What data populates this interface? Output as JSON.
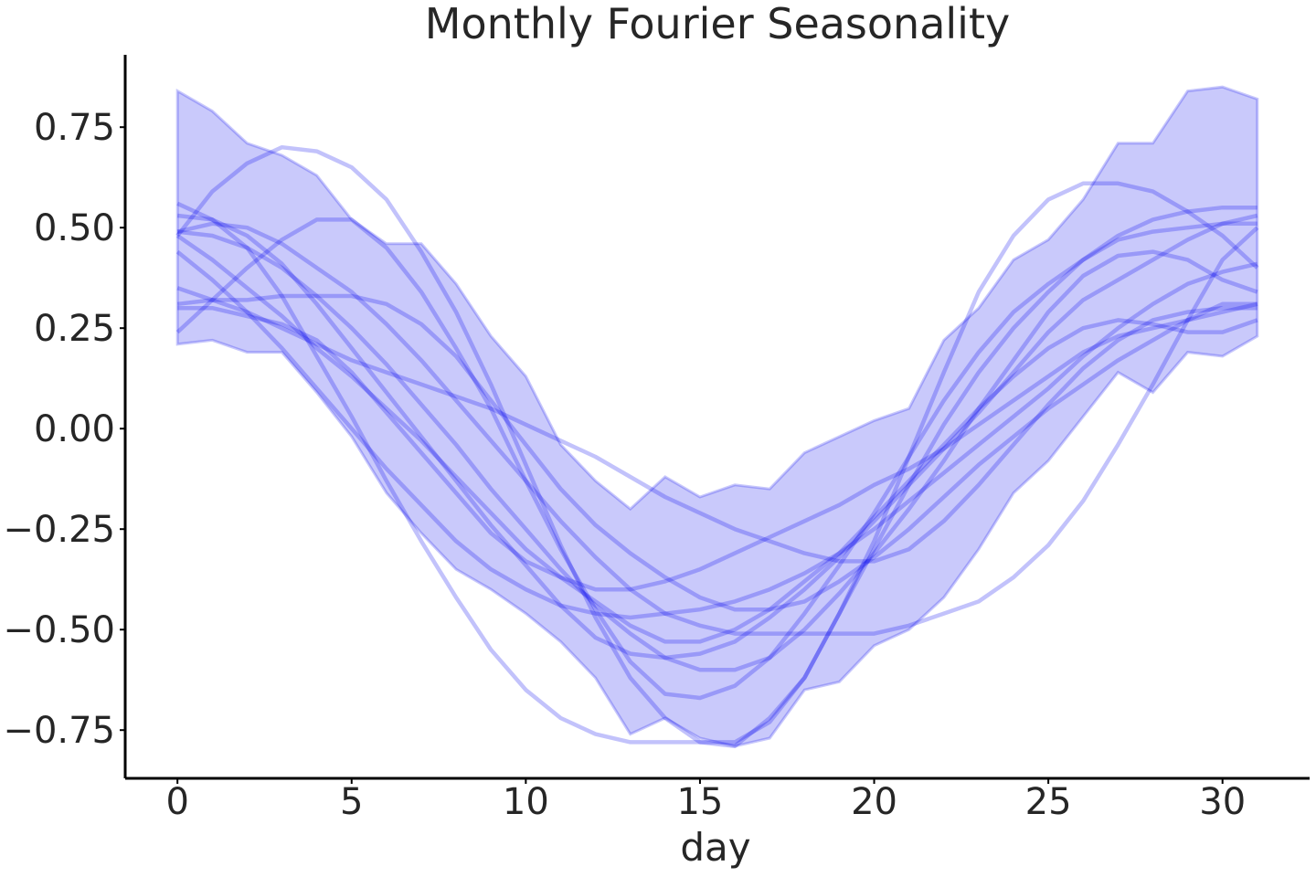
{
  "chart_data": {
    "type": "line",
    "title": "Monthly Fourier Seasonality",
    "xlabel": "day",
    "ylabel": "",
    "xlim": [
      -1.5,
      32.5
    ],
    "ylim": [
      -0.87,
      0.93
    ],
    "xticks": [
      0,
      5,
      10,
      15,
      20,
      25,
      30
    ],
    "xtick_labels": [
      "0",
      "5",
      "10",
      "15",
      "20",
      "25",
      "30"
    ],
    "yticks": [
      0.75,
      0.5,
      0.25,
      0.0,
      -0.25,
      -0.5,
      -0.75
    ],
    "ytick_labels": [
      "0.75",
      "0.50",
      "0.25",
      "0.00",
      "−0.25",
      "−0.50",
      "−0.75"
    ],
    "grid": false,
    "colors": {
      "band": "#0000ee",
      "line": "#0000ee",
      "text": "#262626"
    },
    "band": {
      "x": [
        0,
        1,
        2,
        3,
        4,
        5,
        6,
        7,
        8,
        9,
        10,
        11,
        12,
        13,
        14,
        15,
        16,
        17,
        18,
        19,
        20,
        21,
        22,
        23,
        24,
        25,
        26,
        27,
        28,
        29,
        30,
        31
      ],
      "upper": [
        0.84,
        0.79,
        0.71,
        0.68,
        0.63,
        0.52,
        0.46,
        0.46,
        0.36,
        0.23,
        0.13,
        -0.04,
        -0.13,
        -0.2,
        -0.12,
        -0.17,
        -0.14,
        -0.15,
        -0.06,
        -0.02,
        0.02,
        0.05,
        0.22,
        0.3,
        0.42,
        0.47,
        0.57,
        0.71,
        0.71,
        0.84,
        0.85,
        0.82
      ],
      "lower": [
        0.21,
        0.22,
        0.19,
        0.19,
        0.09,
        -0.02,
        -0.16,
        -0.26,
        -0.35,
        -0.4,
        -0.46,
        -0.53,
        -0.62,
        -0.76,
        -0.72,
        -0.77,
        -0.79,
        -0.77,
        -0.65,
        -0.63,
        -0.54,
        -0.5,
        -0.42,
        -0.3,
        -0.16,
        -0.08,
        0.03,
        0.14,
        0.09,
        0.19,
        0.18,
        0.23
      ]
    },
    "x": [
      0,
      1,
      2,
      3,
      4,
      5,
      6,
      7,
      8,
      9,
      10,
      11,
      12,
      13,
      14,
      15,
      16,
      17,
      18,
      19,
      20,
      21,
      22,
      23,
      24,
      25,
      26,
      27,
      28,
      29,
      30,
      31
    ],
    "series": [
      {
        "values": [
          0.48,
          0.59,
          0.66,
          0.7,
          0.69,
          0.65,
          0.57,
          0.44,
          0.29,
          0.11,
          -0.09,
          -0.29,
          -0.47,
          -0.62,
          -0.72,
          -0.78,
          -0.78,
          -0.73,
          -0.62,
          -0.46,
          -0.28,
          -0.07,
          0.14,
          0.34,
          0.48,
          0.57,
          0.61,
          0.61,
          0.59,
          0.54,
          0.48,
          0.4
        ]
      },
      {
        "values": [
          0.56,
          0.52,
          0.45,
          0.33,
          0.18,
          0.03,
          -0.13,
          -0.28,
          -0.42,
          -0.55,
          -0.65,
          -0.72,
          -0.76,
          -0.78,
          -0.78,
          -0.78,
          -0.79,
          -0.72,
          -0.62,
          -0.46,
          -0.3,
          -0.14,
          0.01,
          0.14,
          0.25,
          0.34,
          0.42,
          0.48,
          0.52,
          0.54,
          0.55,
          0.55
        ]
      },
      {
        "values": [
          0.24,
          0.32,
          0.4,
          0.47,
          0.52,
          0.52,
          0.45,
          0.34,
          0.2,
          0.05,
          -0.13,
          -0.3,
          -0.45,
          -0.58,
          -0.66,
          -0.67,
          -0.64,
          -0.57,
          -0.46,
          -0.34,
          -0.21,
          -0.07,
          0.07,
          0.19,
          0.29,
          0.36,
          0.42,
          0.47,
          0.49,
          0.5,
          0.51,
          0.51
        ]
      },
      {
        "values": [
          0.53,
          0.52,
          0.48,
          0.41,
          0.31,
          0.2,
          0.09,
          -0.02,
          -0.13,
          -0.24,
          -0.34,
          -0.44,
          -0.52,
          -0.56,
          -0.57,
          -0.56,
          -0.53,
          -0.47,
          -0.4,
          -0.32,
          -0.23,
          -0.14,
          -0.05,
          0.04,
          0.14,
          0.24,
          0.32,
          0.37,
          0.42,
          0.47,
          0.51,
          0.53
        ]
      },
      {
        "values": [
          0.49,
          0.48,
          0.45,
          0.4,
          0.33,
          0.25,
          0.16,
          0.06,
          -0.04,
          -0.15,
          -0.25,
          -0.35,
          -0.44,
          -0.51,
          -0.57,
          -0.6,
          -0.6,
          -0.57,
          -0.5,
          -0.41,
          -0.31,
          -0.2,
          -0.08,
          0.05,
          0.17,
          0.29,
          0.38,
          0.43,
          0.44,
          0.42,
          0.37,
          0.34
        ]
      },
      {
        "values": [
          0.31,
          0.32,
          0.32,
          0.33,
          0.33,
          0.33,
          0.31,
          0.26,
          0.18,
          0.07,
          -0.04,
          -0.15,
          -0.24,
          -0.31,
          -0.37,
          -0.42,
          -0.45,
          -0.45,
          -0.43,
          -0.38,
          -0.32,
          -0.25,
          -0.17,
          -0.09,
          -0.02,
          0.05,
          0.11,
          0.17,
          0.22,
          0.27,
          0.31,
          0.31
        ]
      },
      {
        "values": [
          0.35,
          0.32,
          0.29,
          0.25,
          0.21,
          0.17,
          0.14,
          0.11,
          0.08,
          0.05,
          0.01,
          -0.03,
          -0.07,
          -0.12,
          -0.17,
          -0.21,
          -0.25,
          -0.28,
          -0.31,
          -0.33,
          -0.33,
          -0.3,
          -0.23,
          -0.14,
          -0.04,
          0.06,
          0.15,
          0.22,
          0.27,
          0.29,
          0.3,
          0.3
        ]
      },
      {
        "values": [
          0.44,
          0.37,
          0.29,
          0.2,
          0.1,
          0.0,
          -0.1,
          -0.19,
          -0.28,
          -0.35,
          -0.4,
          -0.44,
          -0.46,
          -0.47,
          -0.46,
          -0.45,
          -0.43,
          -0.4,
          -0.36,
          -0.31,
          -0.25,
          -0.18,
          -0.11,
          -0.04,
          0.03,
          0.1,
          0.18,
          0.25,
          0.31,
          0.36,
          0.39,
          0.41
        ]
      },
      {
        "values": [
          0.3,
          0.3,
          0.28,
          0.26,
          0.22,
          0.14,
          0.04,
          -0.06,
          -0.16,
          -0.26,
          -0.33,
          -0.37,
          -0.4,
          -0.4,
          -0.38,
          -0.35,
          -0.31,
          -0.27,
          -0.23,
          -0.19,
          -0.14,
          -0.1,
          -0.05,
          0.01,
          0.07,
          0.13,
          0.19,
          0.23,
          0.25,
          0.27,
          0.29,
          0.31
        ]
      },
      {
        "values": [
          0.49,
          0.51,
          0.5,
          0.46,
          0.4,
          0.34,
          0.26,
          0.17,
          0.07,
          -0.03,
          -0.13,
          -0.23,
          -0.32,
          -0.4,
          -0.46,
          -0.49,
          -0.51,
          -0.51,
          -0.51,
          -0.51,
          -0.51,
          -0.49,
          -0.46,
          -0.43,
          -0.37,
          -0.29,
          -0.18,
          -0.04,
          0.11,
          0.27,
          0.42,
          0.5
        ]
      },
      {
        "values": [
          0.48,
          0.42,
          0.35,
          0.28,
          0.2,
          0.13,
          0.05,
          -0.03,
          -0.12,
          -0.21,
          -0.3,
          -0.37,
          -0.43,
          -0.49,
          -0.53,
          -0.53,
          -0.5,
          -0.45,
          -0.38,
          -0.31,
          -0.22,
          -0.13,
          -0.04,
          0.05,
          0.13,
          0.2,
          0.25,
          0.27,
          0.26,
          0.24,
          0.24,
          0.27
        ]
      }
    ]
  }
}
